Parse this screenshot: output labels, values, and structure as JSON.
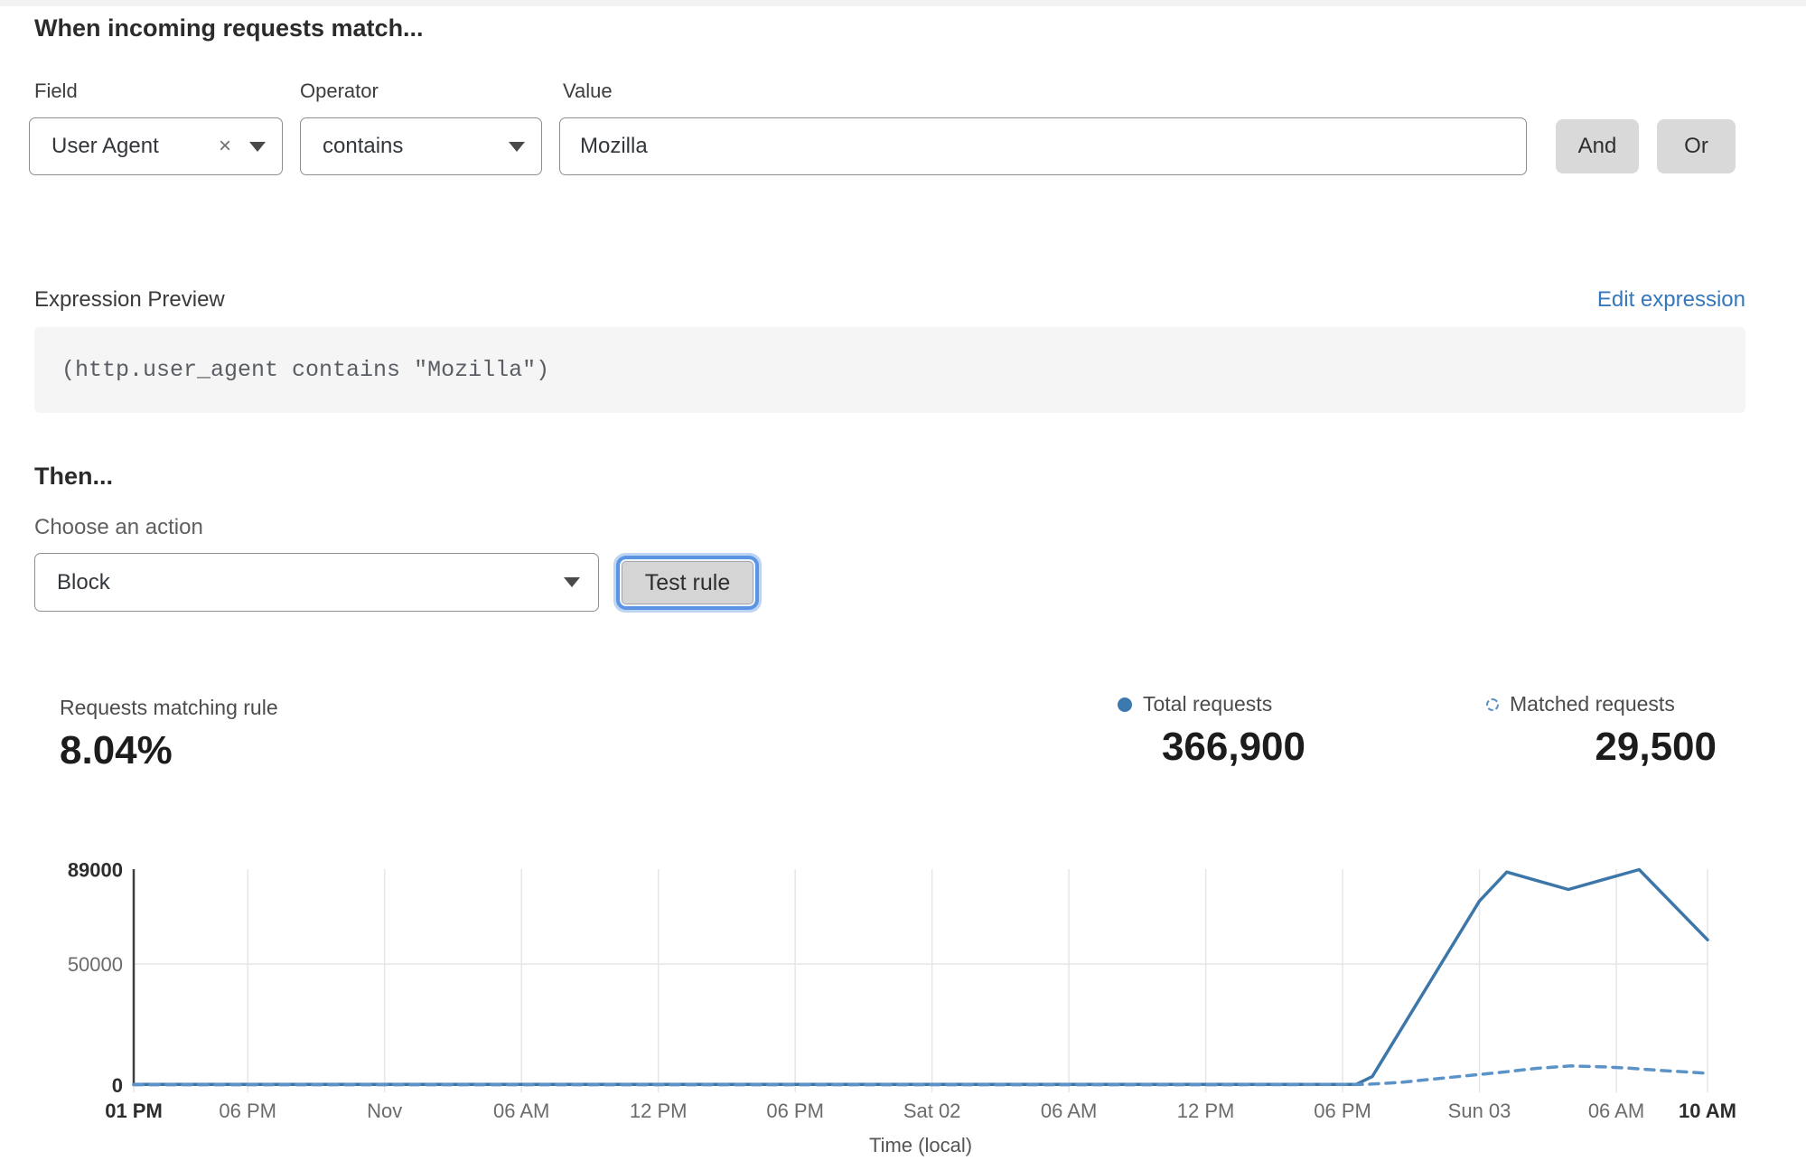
{
  "rule_builder": {
    "heading": "When incoming requests match...",
    "field": {
      "label": "Field",
      "value": "User Agent"
    },
    "operator": {
      "label": "Operator",
      "value": "contains"
    },
    "value": {
      "label": "Value",
      "value": "Mozilla"
    },
    "and_label": "And",
    "or_label": "Or"
  },
  "expression": {
    "label": "Expression Preview",
    "edit_link": "Edit expression",
    "code": "(http.user_agent contains \"Mozilla\")"
  },
  "action": {
    "heading": "Then...",
    "label": "Choose an action",
    "selected": "Block",
    "test_button": "Test rule"
  },
  "stats": {
    "matching": {
      "label": "Requests matching rule",
      "value": "8.04%"
    },
    "total": {
      "label": "Total requests",
      "value": "366,900"
    },
    "matched": {
      "label": "Matched requests",
      "value": "29,500"
    }
  },
  "colors": {
    "accent_blue": "#3d76a9",
    "dashed_blue": "#5b92c8",
    "link_blue": "#3578bd",
    "grid": "#e6e6e6",
    "axis": "#3f3f3f"
  },
  "chart_data": {
    "type": "line",
    "xlabel": "Time (local)",
    "ylabel": "",
    "ylim": [
      0,
      89000
    ],
    "xrange_hours": [
      0,
      69
    ],
    "grid": "on",
    "legend_position": "top-right",
    "yticks": [
      {
        "value": 0,
        "label": "0",
        "bold": true
      },
      {
        "value": 50000,
        "label": "50000",
        "bold": false
      },
      {
        "value": 89000,
        "label": "89000",
        "bold": true
      }
    ],
    "xticks": [
      {
        "h": 0,
        "label": "01 PM",
        "bold": true
      },
      {
        "h": 5,
        "label": "06 PM",
        "bold": false
      },
      {
        "h": 11,
        "label": "Nov",
        "bold": false
      },
      {
        "h": 17,
        "label": "06 AM",
        "bold": false
      },
      {
        "h": 23,
        "label": "12 PM",
        "bold": false
      },
      {
        "h": 29,
        "label": "06 PM",
        "bold": false
      },
      {
        "h": 35,
        "label": "Sat 02",
        "bold": false
      },
      {
        "h": 41,
        "label": "06 AM",
        "bold": false
      },
      {
        "h": 47,
        "label": "12 PM",
        "bold": false
      },
      {
        "h": 53,
        "label": "06 PM",
        "bold": false
      },
      {
        "h": 59,
        "label": "Sun 03",
        "bold": false
      },
      {
        "h": 65,
        "label": "06 AM",
        "bold": false
      },
      {
        "h": 69,
        "label": "10 AM",
        "bold": true
      }
    ],
    "series": [
      {
        "name": "Total requests",
        "style": "solid",
        "color": "#3d76a9",
        "points": [
          [
            0,
            250
          ],
          [
            10,
            250
          ],
          [
            20,
            250
          ],
          [
            30,
            250
          ],
          [
            40,
            250
          ],
          [
            48,
            250
          ],
          [
            53.6,
            300
          ],
          [
            54.3,
            3500
          ],
          [
            59,
            76000
          ],
          [
            60.2,
            88000
          ],
          [
            61.5,
            84500
          ],
          [
            62.9,
            80800
          ],
          [
            64.4,
            84800
          ],
          [
            66,
            89000
          ],
          [
            69,
            60000
          ]
        ]
      },
      {
        "name": "Matched requests",
        "style": "dashed",
        "color": "#5b92c8",
        "points": [
          [
            0,
            150
          ],
          [
            10,
            150
          ],
          [
            20,
            150
          ],
          [
            30,
            150
          ],
          [
            40,
            150
          ],
          [
            48,
            150
          ],
          [
            54,
            250
          ],
          [
            55.5,
            1100
          ],
          [
            57,
            2500
          ],
          [
            58.5,
            3900
          ],
          [
            60,
            5300
          ],
          [
            61.5,
            6900
          ],
          [
            63,
            7900
          ],
          [
            64.5,
            7500
          ],
          [
            65.5,
            7000
          ],
          [
            67,
            6000
          ],
          [
            69,
            4900
          ]
        ]
      }
    ]
  }
}
